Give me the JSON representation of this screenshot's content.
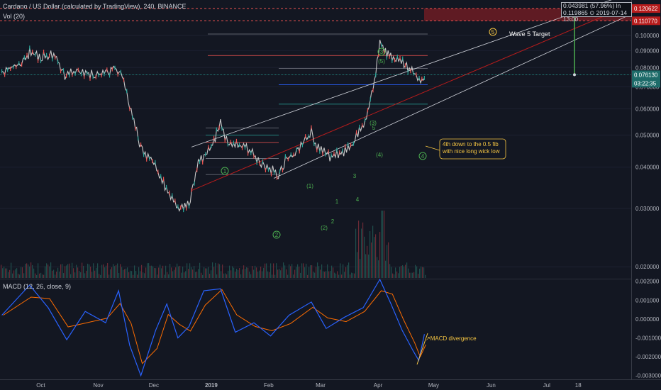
{
  "header": {
    "title": "Cardano / US Dollar (calculated by TradingView), 240, BINANCE",
    "volume_label": "Vol (20)",
    "macd_label": "MACD (12, 26, close, 9)"
  },
  "measure_box": {
    "line1": "0.043981 (57.96%) ln",
    "line2": "0.119865 ⊙ 2019-07-14 13:00"
  },
  "annotations": {
    "wave5_target": "Wave 5 Target",
    "wave5_circle": "5",
    "fourth_down_text": [
      "4th down to the 0.5 fib",
      "with nice long wick low"
    ],
    "macd_divergence": "MACD divergence"
  },
  "price_badges": {
    "target_top": "0.120622",
    "target_bottom": "0.110770",
    "current": "0.076130",
    "countdown": "03:22:35"
  },
  "colors": {
    "background": "#131722",
    "up": "#26a69a",
    "down": "#ef5350",
    "target_zone": "#7a1d24",
    "target_badge": "#b71c1c",
    "current_badge": "#1e6c6a",
    "macd": "#2962ff",
    "signal": "#ff6d00",
    "wave_label": "#4caf50",
    "annotation_text": "#f5c542"
  },
  "chart_data": [
    {
      "type": "line",
      "title": "Cardano / US Dollar (calculated by TradingView), 240, BINANCE",
      "y_scale": "log",
      "ylim": [
        0.0185,
        0.128
      ],
      "x_ticks": [
        "Oct",
        "Nov",
        "Dec",
        "2019",
        "Feb",
        "Mar",
        "Apr",
        "May",
        "Jun",
        "Jul",
        "18"
      ],
      "y_ticks": [
        "0.100000",
        "0.090000",
        "0.080000",
        "0.070000",
        "0.060000",
        "0.050000",
        "0.040000",
        "0.030000",
        "0.020000"
      ],
      "series": [
        {
          "values_by_date": [
            [
              "2018-09-10",
              0.078
            ],
            [
              "2018-09-20",
              0.082
            ],
            [
              "2018-09-25",
              0.089
            ],
            [
              "2018-10-01",
              0.086
            ],
            [
              "2018-10-08",
              0.088
            ],
            [
              "2018-10-14",
              0.076
            ],
            [
              "2018-10-22",
              0.078
            ],
            [
              "2018-10-30",
              0.076
            ],
            [
              "2018-11-05",
              0.077
            ],
            [
              "2018-11-10",
              0.08
            ],
            [
              "2018-11-14",
              0.075
            ],
            [
              "2018-11-18",
              0.061
            ],
            [
              "2018-11-24",
              0.046
            ],
            [
              "2018-12-01",
              0.041
            ],
            [
              "2018-12-07",
              0.035
            ],
            [
              "2018-12-14",
              0.03
            ],
            [
              "2018-12-20",
              0.031
            ],
            [
              "2018-12-25",
              0.041
            ],
            [
              "2019-01-01",
              0.046
            ],
            [
              "2019-01-06",
              0.054
            ],
            [
              "2019-01-10",
              0.047
            ],
            [
              "2019-01-20",
              0.046
            ],
            [
              "2019-01-28",
              0.041
            ],
            [
              "2019-02-07",
              0.038
            ],
            [
              "2019-02-10",
              0.042
            ],
            [
              "2019-02-16",
              0.044
            ],
            [
              "2019-02-24",
              0.051
            ],
            [
              "2019-02-27",
              0.046
            ],
            [
              "2019-03-06",
              0.043
            ],
            [
              "2019-03-12",
              0.044
            ],
            [
              "2019-03-18",
              0.047
            ],
            [
              "2019-03-25",
              0.055
            ],
            [
              "2019-03-30",
              0.072
            ],
            [
              "2019-04-02",
              0.097
            ],
            [
              "2019-04-05",
              0.089
            ],
            [
              "2019-04-10",
              0.085
            ],
            [
              "2019-04-15",
              0.082
            ],
            [
              "2019-04-20",
              0.077
            ],
            [
              "2019-04-24",
              0.072
            ],
            [
              "2019-04-26",
              0.0761
            ]
          ]
        }
      ],
      "fib_levels": [
        0.038,
        0.0425,
        0.0475,
        0.05,
        0.0525,
        0.056,
        0.062,
        0.071,
        0.0795,
        0.087,
        0.101
      ]
    },
    {
      "type": "bar",
      "title": "Vol (20)",
      "note": "volume histogram, spike around early April 2019"
    },
    {
      "type": "line",
      "title": "MACD (12, 26, close, 9)",
      "ylim": [
        -0.0032,
        0.0021
      ],
      "y_ticks": [
        "0.002000",
        "0.001000",
        "0.000000",
        "-0.001000",
        "-0.002000",
        "-0.003000"
      ],
      "series": [
        {
          "values_by_date": [
            [
              "2018-09-10",
              0.0002
            ],
            [
              "2018-09-25",
              0.0018
            ],
            [
              "2018-10-05",
              0.0006
            ],
            [
              "2018-10-15",
              -0.0011
            ],
            [
              "2018-10-25",
              0.0004
            ],
            [
              "2018-11-05",
              -0.0002
            ],
            [
              "2018-11-12",
              0.0015
            ],
            [
              "2018-11-18",
              -0.0014
            ],
            [
              "2018-11-24",
              -0.003
            ],
            [
              "2018-12-02",
              -0.0006
            ],
            [
              "2018-12-08",
              0.0008
            ],
            [
              "2018-12-14",
              -0.001
            ],
            [
              "2018-12-20",
              -0.0004
            ],
            [
              "2018-12-28",
              0.0015
            ],
            [
              "2019-01-06",
              0.0016
            ],
            [
              "2019-01-14",
              -0.0007
            ],
            [
              "2019-01-24",
              -0.0002
            ],
            [
              "2019-02-02",
              -0.0009
            ],
            [
              "2019-02-12",
              0.0002
            ],
            [
              "2019-02-24",
              0.0009
            ],
            [
              "2019-03-04",
              -0.0005
            ],
            [
              "2019-03-14",
              0.0001
            ],
            [
              "2019-03-24",
              0.0006
            ],
            [
              "2019-04-02",
              0.0021
            ],
            [
              "2019-04-08",
              0.0008
            ],
            [
              "2019-04-14",
              -0.0006
            ],
            [
              "2019-04-20",
              -0.0017
            ],
            [
              "2019-04-23",
              -0.0022
            ],
            [
              "2019-04-26",
              -0.0008
            ]
          ]
        }
      ]
    }
  ]
}
